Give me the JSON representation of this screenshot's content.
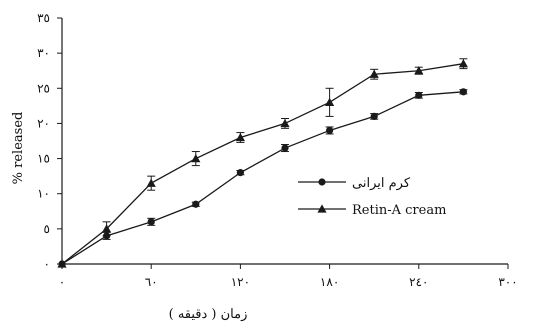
{
  "chart_data": {
    "type": "line",
    "title": "",
    "xlabel": "زمان ( دقیقه )",
    "ylabel": "% released",
    "xlim": [
      0,
      300
    ],
    "ylim": [
      0,
      35
    ],
    "x_ticks": [
      0,
      60,
      120,
      180,
      240,
      300
    ],
    "x_tick_labels": [
      "٠",
      "٦٠",
      "١٢٠",
      "١٨٠",
      "٢٤٠",
      "٣٠٠"
    ],
    "y_ticks": [
      0,
      5,
      10,
      15,
      20,
      25,
      30,
      35
    ],
    "y_tick_labels": [
      "٠",
      "٥",
      "١٠",
      "١٥",
      "٢٠",
      "٢٥",
      "٣٠",
      "٣٥"
    ],
    "grid": false,
    "legend_position": "right",
    "series": [
      {
        "name": "کرم ایرانی",
        "marker": "circle",
        "x": [
          0,
          30,
          60,
          90,
          120,
          150,
          180,
          210,
          240,
          270
        ],
        "y": [
          0,
          4.0,
          6.0,
          8.5,
          13.0,
          16.5,
          19.0,
          21.0,
          24.0,
          24.5
        ],
        "error": [
          0,
          0.5,
          0.5,
          0.3,
          0.3,
          0.5,
          0.5,
          0.4,
          0.4,
          0.3
        ]
      },
      {
        "name": "Retin-A cream",
        "marker": "triangle",
        "x": [
          0,
          30,
          60,
          90,
          120,
          150,
          180,
          210,
          240,
          270
        ],
        "y": [
          0,
          5.0,
          11.5,
          15.0,
          18.0,
          20.0,
          23.0,
          27.0,
          27.5,
          28.5
        ],
        "error": [
          0,
          1.0,
          1.0,
          1.0,
          0.7,
          0.7,
          2.0,
          0.7,
          0.5,
          0.7
        ]
      }
    ]
  }
}
